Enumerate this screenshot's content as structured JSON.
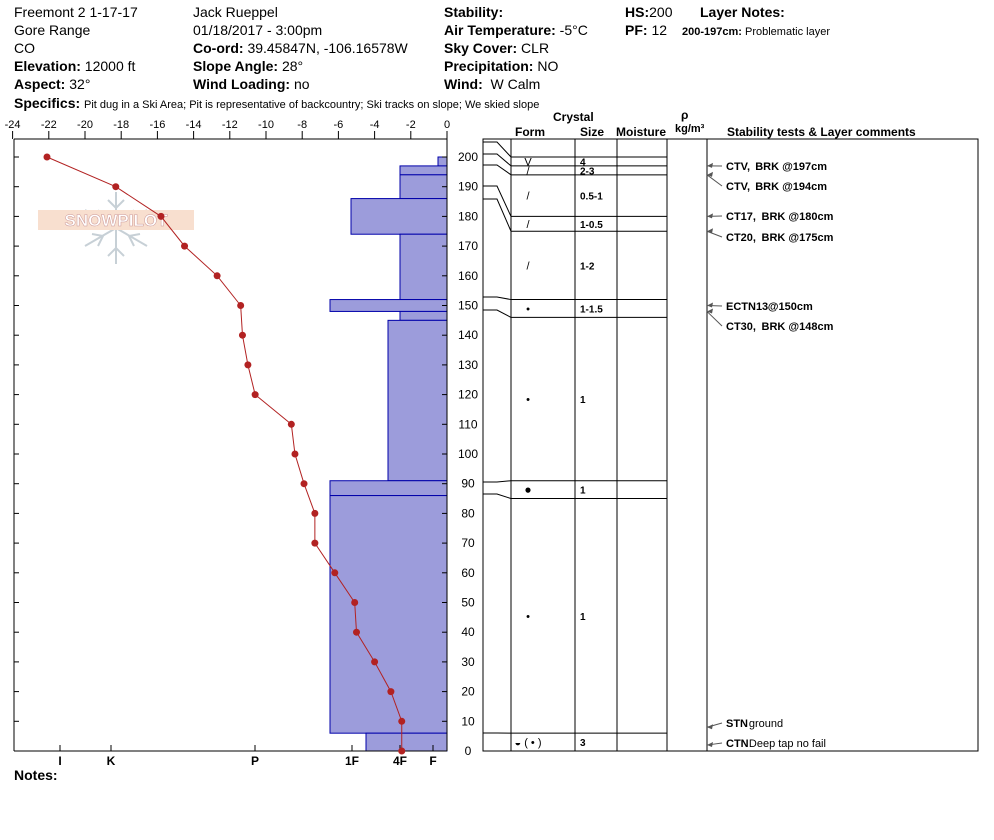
{
  "header": {
    "site": "Freemont 2 1-17-17",
    "range": "Gore Range",
    "state": "CO",
    "elevation_label": "Elevation:",
    "elevation": "12000 ft",
    "aspect_label": "Aspect:",
    "aspect": "32°",
    "observer": "Jack Rueppel",
    "datetime": "01/18/2017 - 3:00pm",
    "coord_label": "Co-ord:",
    "coord": "39.45847N, -106.16578W",
    "slope_label": "Slope Angle:",
    "slope": "28°",
    "windload_label": "Wind Loading:",
    "windload": "no",
    "stability_label": "Stability:",
    "stability": "",
    "airtemp_label": "Air Temperature:",
    "airtemp": "-5°C",
    "sky_label": "Sky Cover:",
    "sky": "CLR",
    "precip_label": "Precipitation:",
    "precip": "NO",
    "wind_label": "Wind:",
    "wind": "W Calm",
    "hs_label": "HS:",
    "hs": "200",
    "pf_label": "PF:",
    "pf": "12",
    "layer_notes_label": "Layer Notes:",
    "layer_note_range": "200-197cm:",
    "layer_note_text": "Problematic layer",
    "specifics_label": "Specifics:",
    "specifics": "Pit dug in a Ski Area; Pit is representative of backcountry; Ski tracks on slope; We skied slope",
    "notes_label": "Notes:"
  },
  "logo_text": "SNOWPILOT",
  "columns": {
    "crystal": "Crystal",
    "form": "Form",
    "size": "Size",
    "moisture": "Moisture",
    "rho": "ρ",
    "density": "kg/m³",
    "stability": "Stability tests & Layer comments"
  },
  "colors": {
    "hardness_fill": "#9c9cdb",
    "hardness_stroke": "#0000aa",
    "temp": "#b22222"
  },
  "chart_data": {
    "type": "snow-profile",
    "temp_axis": {
      "min": -24,
      "max": 0,
      "ticks": [
        -24,
        -22,
        -20,
        -18,
        -16,
        -14,
        -12,
        -10,
        -8,
        -6,
        -4,
        -2,
        0
      ]
    },
    "height_axis": {
      "min": 0,
      "max": 200,
      "ticks": [
        0,
        10,
        20,
        30,
        40,
        50,
        60,
        70,
        80,
        90,
        100,
        110,
        120,
        130,
        140,
        150,
        160,
        170,
        180,
        190,
        200
      ]
    },
    "hardness_ticks": [
      "I",
      "K",
      "P",
      "1F",
      "4F",
      "F"
    ],
    "temperature_profile": [
      {
        "h": 200,
        "t": -22.1
      },
      {
        "h": 190,
        "t": -18.3
      },
      {
        "h": 180,
        "t": -15.8
      },
      {
        "h": 170,
        "t": -14.5
      },
      {
        "h": 160,
        "t": -12.7
      },
      {
        "h": 150,
        "t": -11.4
      },
      {
        "h": 140,
        "t": -11.3
      },
      {
        "h": 130,
        "t": -11.0
      },
      {
        "h": 120,
        "t": -10.6
      },
      {
        "h": 110,
        "t": -8.6
      },
      {
        "h": 100,
        "t": -8.4
      },
      {
        "h": 90,
        "t": -7.9
      },
      {
        "h": 80,
        "t": -7.3
      },
      {
        "h": 70,
        "t": -7.3
      },
      {
        "h": 60,
        "t": -6.2
      },
      {
        "h": 50,
        "t": -5.1
      },
      {
        "h": 40,
        "t": -5.0
      },
      {
        "h": 30,
        "t": -4.0
      },
      {
        "h": 20,
        "t": -3.1
      },
      {
        "h": 10,
        "t": -2.5
      },
      {
        "h": 0,
        "t": -2.5
      }
    ],
    "hardness_layers": [
      {
        "top": 200,
        "bottom": 197,
        "hardness": "F"
      },
      {
        "top": 197,
        "bottom": 194,
        "hardness": "4F"
      },
      {
        "top": 194,
        "bottom": 186,
        "hardness": "4F"
      },
      {
        "top": 186,
        "bottom": 174,
        "hardness": "1F"
      },
      {
        "top": 174,
        "bottom": 152,
        "hardness": "4F"
      },
      {
        "top": 152,
        "bottom": 148,
        "hardness": "1F-"
      },
      {
        "top": 148,
        "bottom": 145,
        "hardness": "4F"
      },
      {
        "top": 145,
        "bottom": 91,
        "hardness": "4F+"
      },
      {
        "top": 91,
        "bottom": 86,
        "hardness": "1F-"
      },
      {
        "top": 86,
        "bottom": 6,
        "hardness": "1F-"
      },
      {
        "top": 6,
        "bottom": 0,
        "hardness": "4F-"
      }
    ],
    "grain_layers": [
      {
        "top": 200,
        "bottom": 197,
        "form": "V",
        "size": "4"
      },
      {
        "top": 197,
        "bottom": 194,
        "form": "/",
        "size": "2-3"
      },
      {
        "top": 194,
        "bottom": 180,
        "form": "/",
        "size": "0.5-1"
      },
      {
        "top": 180,
        "bottom": 175,
        "form": "/",
        "size": "1-0.5"
      },
      {
        "top": 175,
        "bottom": 152,
        "form": "/",
        "size": "1-2"
      },
      {
        "top": 152,
        "bottom": 146,
        "form": "•",
        "size": "1-1.5"
      },
      {
        "top": 146,
        "bottom": 91,
        "form": "•",
        "size": "1"
      },
      {
        "top": 91,
        "bottom": 85,
        "form": "●",
        "size": "1"
      },
      {
        "top": 85,
        "bottom": 6,
        "form": "•",
        "size": "1"
      },
      {
        "top": 6,
        "bottom": 0,
        "form": "◒ ( • )",
        "size": "3"
      }
    ],
    "stability_tests": [
      {
        "h": 197,
        "code": "CTV,",
        "text": "BRK @197cm"
      },
      {
        "h": 194,
        "code": "CTV,",
        "text": "BRK @194cm"
      },
      {
        "h": 180,
        "code": "CT17,",
        "text": "BRK @180cm"
      },
      {
        "h": 175,
        "code": "CT20,",
        "text": "BRK @175cm"
      },
      {
        "h": 150,
        "code": "ECTN13",
        "text": "@150cm"
      },
      {
        "h": 148,
        "code": "CT30,",
        "text": "BRK @148cm"
      },
      {
        "h": 8,
        "code": "STN",
        "text": "ground"
      },
      {
        "h": 2,
        "code": "CTN",
        "text": "Deep tap no fail"
      }
    ]
  }
}
